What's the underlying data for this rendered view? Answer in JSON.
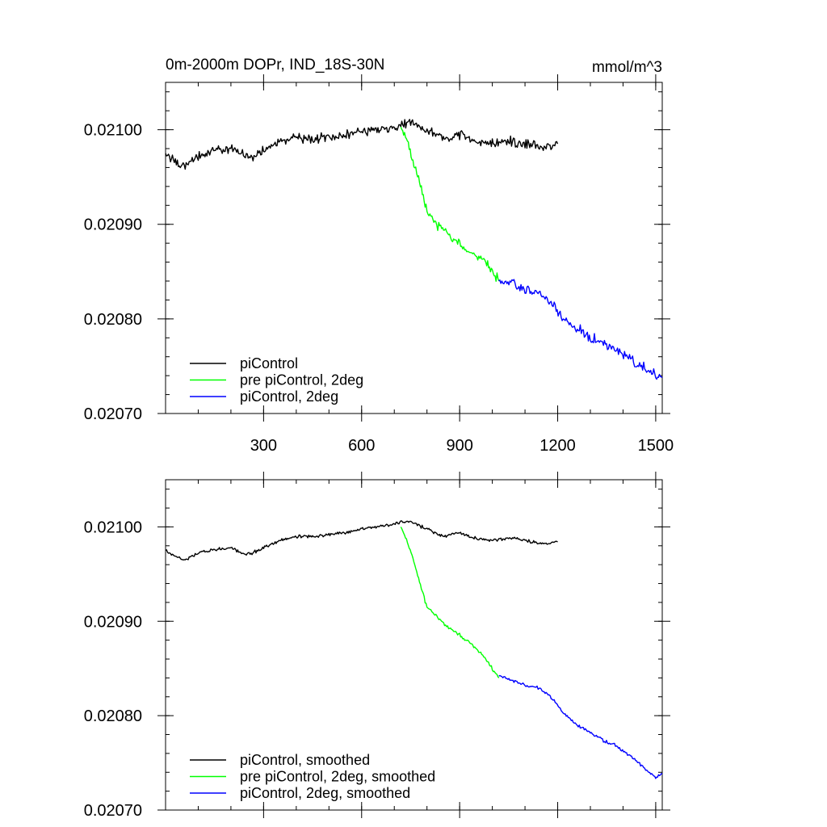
{
  "chart_data": [
    {
      "type": "line",
      "title": "0m-2000m DOPr, IND_18S-30N",
      "units": "mmol/m^3",
      "xlim": [
        0,
        1520
      ],
      "ylim": [
        0.0207,
        0.02105
      ],
      "x_ticks": [
        300,
        600,
        900,
        1200,
        1500
      ],
      "y_ticks": [
        "0.02070",
        "0.02080",
        "0.02090",
        "0.02100"
      ],
      "legend_position": "bottom-left",
      "series": [
        {
          "name": "piControl",
          "color": "#000000",
          "x": [
            0,
            30,
            60,
            100,
            150,
            200,
            250,
            300,
            350,
            400,
            450,
            500,
            550,
            600,
            650,
            700,
            720,
            750,
            800,
            850,
            900,
            950,
            1000,
            1050,
            1100,
            1150,
            1200
          ],
          "y": [
            0.020975,
            0.020965,
            0.020962,
            0.020972,
            0.020978,
            0.02098,
            0.02097,
            0.020978,
            0.020988,
            0.020992,
            0.02099,
            0.020992,
            0.020994,
            0.020998,
            0.021,
            0.021003,
            0.021005,
            0.021007,
            0.021,
            0.02099,
            0.020995,
            0.020988,
            0.020986,
            0.020988,
            0.020985,
            0.020982,
            0.020985
          ]
        },
        {
          "name": "pre piControl, 2deg",
          "color": "#00ff00",
          "x": [
            720,
            740,
            760,
            780,
            800,
            830,
            860,
            900,
            940,
            980,
            1000,
            1020
          ],
          "y": [
            0.021003,
            0.020985,
            0.020965,
            0.02094,
            0.020915,
            0.0209,
            0.02089,
            0.02088,
            0.020868,
            0.02086,
            0.02085,
            0.02084
          ]
        },
        {
          "name": "piControl, 2deg",
          "color": "#0000ff",
          "x": [
            1020,
            1060,
            1100,
            1140,
            1180,
            1220,
            1260,
            1300,
            1340,
            1380,
            1420,
            1460,
            1500,
            1520
          ],
          "y": [
            0.02084,
            0.020838,
            0.02083,
            0.020828,
            0.020818,
            0.0208,
            0.02079,
            0.02078,
            0.020775,
            0.020768,
            0.020758,
            0.020748,
            0.02074,
            0.020738
          ]
        }
      ]
    },
    {
      "type": "line",
      "xlim": [
        0,
        1520
      ],
      "ylim": [
        0.0207,
        0.02105
      ],
      "x_ticks": [
        300,
        600,
        900,
        1200,
        1500
      ],
      "y_ticks": [
        "0.02070",
        "0.02080",
        "0.02090",
        "0.02100"
      ],
      "legend_position": "bottom-left",
      "series": [
        {
          "name": "piControl, smoothed",
          "color": "#000000",
          "x": [
            0,
            30,
            60,
            100,
            150,
            200,
            250,
            300,
            350,
            400,
            450,
            500,
            550,
            600,
            650,
            700,
            720,
            750,
            800,
            850,
            900,
            950,
            1000,
            1050,
            1100,
            1150,
            1200
          ],
          "y": [
            0.020975,
            0.020968,
            0.020965,
            0.020972,
            0.020976,
            0.020978,
            0.02097,
            0.020978,
            0.020986,
            0.02099,
            0.02099,
            0.020992,
            0.020994,
            0.020998,
            0.021,
            0.021003,
            0.021005,
            0.021006,
            0.020998,
            0.02099,
            0.020994,
            0.020988,
            0.020986,
            0.020988,
            0.020986,
            0.020982,
            0.020984
          ]
        },
        {
          "name": "pre piControl, 2deg, smoothed",
          "color": "#00ff00",
          "x": [
            720,
            740,
            760,
            780,
            800,
            830,
            860,
            900,
            940,
            980,
            1000,
            1020
          ],
          "y": [
            0.021,
            0.020985,
            0.020962,
            0.020938,
            0.020915,
            0.020905,
            0.020895,
            0.020885,
            0.020875,
            0.02086,
            0.02085,
            0.02084
          ]
        },
        {
          "name": "piControl, 2deg, smoothed",
          "color": "#0000ff",
          "x": [
            1020,
            1060,
            1100,
            1140,
            1180,
            1220,
            1260,
            1300,
            1340,
            1380,
            1420,
            1460,
            1500,
            1520
          ],
          "y": [
            0.020842,
            0.020838,
            0.020832,
            0.02083,
            0.02082,
            0.020802,
            0.02079,
            0.020782,
            0.020774,
            0.020768,
            0.020758,
            0.020746,
            0.020734,
            0.020738
          ]
        }
      ]
    }
  ]
}
